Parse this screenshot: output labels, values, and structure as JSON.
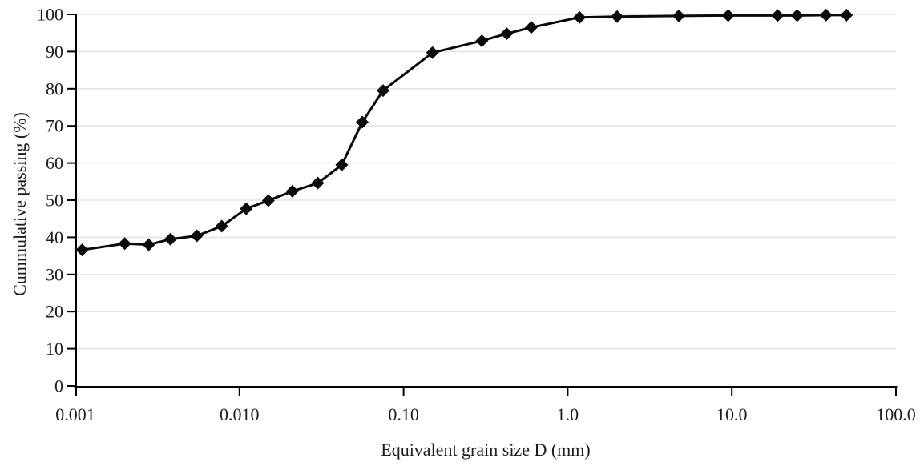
{
  "figure": {
    "background": "#ffffff"
  },
  "chart_data": {
    "type": "line",
    "title": "",
    "xlabel": "Equivalent grain size D (mm)",
    "ylabel": "Cummulative passing (%)",
    "x_scale": "log",
    "y_scale": "linear",
    "xlim": [
      0.001,
      100
    ],
    "ylim": [
      0,
      100
    ],
    "grid": "horizontal-only",
    "legend": "none",
    "x_ticks": [
      {
        "value": 0.001,
        "label": "0.001"
      },
      {
        "value": 0.01,
        "label": "0.010"
      },
      {
        "value": 0.1,
        "label": "0.10"
      },
      {
        "value": 1,
        "label": "1.0"
      },
      {
        "value": 10,
        "label": "10.0"
      },
      {
        "value": 100,
        "label": "100.0"
      }
    ],
    "y_ticks": [
      {
        "value": 0,
        "label": "0"
      },
      {
        "value": 10,
        "label": "10"
      },
      {
        "value": 20,
        "label": "20"
      },
      {
        "value": 30,
        "label": "30"
      },
      {
        "value": 40,
        "label": "40"
      },
      {
        "value": 50,
        "label": "50"
      },
      {
        "value": 60,
        "label": "60"
      },
      {
        "value": 70,
        "label": "70"
      },
      {
        "value": 80,
        "label": "80"
      },
      {
        "value": 90,
        "label": "90"
      },
      {
        "value": 100,
        "label": "100"
      }
    ],
    "series": [
      {
        "name": "cumulative-passing-curve",
        "marker": "diamond",
        "points": [
          [
            0.0011,
            36.6
          ],
          [
            0.002,
            38.3
          ],
          [
            0.0028,
            38.0
          ],
          [
            0.0038,
            39.5
          ],
          [
            0.0055,
            40.4
          ],
          [
            0.0078,
            43.0
          ],
          [
            0.011,
            47.7
          ],
          [
            0.015,
            49.9
          ],
          [
            0.021,
            52.4
          ],
          [
            0.03,
            54.6
          ],
          [
            0.042,
            59.5
          ],
          [
            0.056,
            71.0
          ],
          [
            0.075,
            79.5
          ],
          [
            0.15,
            89.7
          ],
          [
            0.3,
            92.9
          ],
          [
            0.425,
            94.8
          ],
          [
            0.6,
            96.5
          ],
          [
            1.18,
            99.2
          ],
          [
            2.0,
            99.4
          ],
          [
            4.75,
            99.6
          ],
          [
            9.5,
            99.7
          ],
          [
            19,
            99.7
          ],
          [
            25,
            99.7
          ],
          [
            37.5,
            99.8
          ],
          [
            50,
            99.8
          ]
        ]
      }
    ],
    "colors": {
      "line": "#0a0a0a",
      "marker": "#0a0a0a",
      "grid": "#e4e4e4",
      "axis": "#000000",
      "text": "#1c1c24"
    }
  }
}
